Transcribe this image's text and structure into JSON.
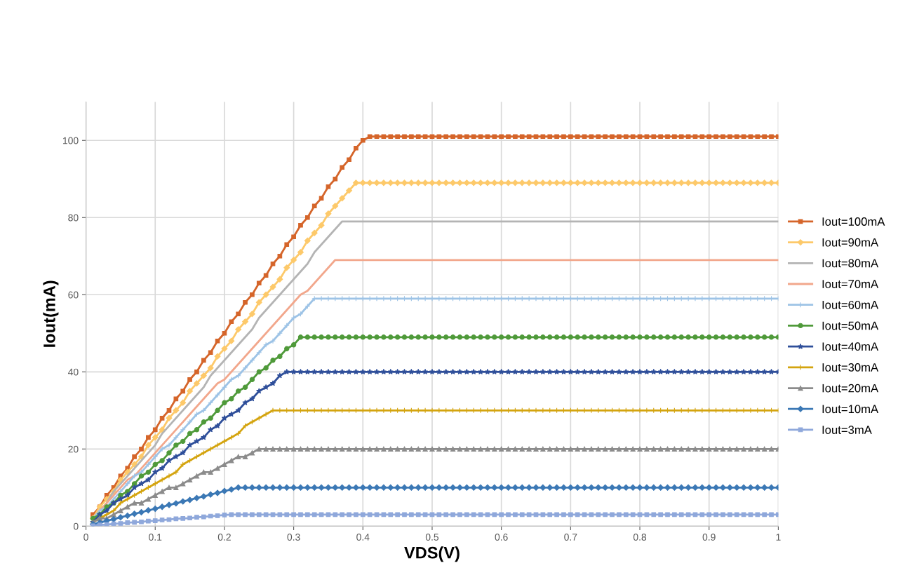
{
  "chart_data": {
    "type": "line",
    "xlabel": "VDS(V)",
    "ylabel": "Iout(mA)",
    "x": [
      0.01,
      0.02,
      0.03,
      0.04,
      0.05,
      0.06,
      0.07,
      0.08,
      0.09,
      0.1,
      0.11,
      0.12,
      0.13,
      0.14,
      0.15,
      0.16,
      0.17,
      0.18,
      0.19,
      0.2,
      0.21,
      0.22,
      0.23,
      0.24,
      0.25,
      0.26,
      0.27,
      0.28,
      0.29,
      0.3,
      0.31,
      0.32,
      0.33,
      0.34,
      0.35,
      0.36,
      0.37,
      0.38,
      0.39,
      0.4,
      0.41,
      0.42,
      0.43,
      0.44,
      0.45,
      0.46,
      0.47,
      0.48,
      0.49,
      0.5,
      0.51,
      0.52,
      0.53,
      0.54,
      0.55,
      0.56,
      0.57,
      0.58,
      0.59,
      0.6,
      0.61,
      0.62,
      0.63,
      0.64,
      0.65,
      0.66,
      0.67,
      0.68,
      0.69,
      0.7,
      0.71,
      0.72,
      0.73,
      0.74,
      0.75,
      0.76,
      0.77,
      0.78,
      0.79,
      0.8,
      0.81,
      0.82,
      0.83,
      0.84,
      0.85,
      0.86,
      0.87,
      0.88,
      0.89,
      0.9,
      0.91,
      0.92,
      0.93,
      0.94,
      0.95,
      0.96,
      0.97,
      0.98,
      0.99,
      1
    ],
    "xlim": [
      0,
      1
    ],
    "xticks": [
      0,
      0.1,
      0.2,
      0.3,
      0.4,
      0.5,
      0.6,
      0.7,
      0.8,
      0.9,
      1
    ],
    "ylim": [
      0,
      110
    ],
    "yticks": [
      0,
      20,
      40,
      60,
      80,
      100
    ],
    "grid": true,
    "legend": "right",
    "line_style": "solid",
    "series": [
      {
        "name": "Iout=100mA",
        "color": "#d5652a",
        "marker": "square",
        "values": [
          3,
          5,
          8,
          10,
          13,
          15,
          18,
          20,
          23,
          25,
          28,
          30,
          33,
          35,
          38,
          40,
          43,
          45,
          48,
          50,
          53,
          55,
          58,
          60,
          63,
          65,
          68,
          70,
          73,
          75,
          78,
          80,
          83,
          85,
          88,
          90,
          93,
          95,
          98,
          100,
          101,
          101,
          101,
          101,
          101,
          101,
          101,
          101,
          101,
          101,
          101,
          101,
          101,
          101,
          101,
          101,
          101,
          101,
          101,
          101,
          101,
          101,
          101,
          101,
          101,
          101,
          101,
          101,
          101,
          101,
          101,
          101,
          101,
          101,
          101,
          101,
          101,
          101,
          101,
          101,
          101,
          101,
          101,
          101,
          101,
          101,
          101,
          101,
          101,
          101,
          101,
          101,
          101,
          101,
          101,
          101,
          101,
          101,
          101,
          101
        ]
      },
      {
        "name": "Iout=90mA",
        "color": "#fdc96a",
        "marker": "diamond",
        "values": [
          2,
          5,
          7,
          9,
          12,
          14,
          16,
          18,
          21,
          23,
          25,
          28,
          30,
          32,
          35,
          37,
          39,
          41,
          44,
          46,
          48,
          51,
          53,
          55,
          58,
          60,
          62,
          64,
          67,
          69,
          71,
          74,
          76,
          78,
          81,
          83,
          85,
          87,
          89,
          89,
          89,
          89,
          89,
          89,
          89,
          89,
          89,
          89,
          89,
          89,
          89,
          89,
          89,
          89,
          89,
          89,
          89,
          89,
          89,
          89,
          89,
          89,
          89,
          89,
          89,
          89,
          89,
          89,
          89,
          89,
          89,
          89,
          89,
          89,
          89,
          89,
          89,
          89,
          89,
          89,
          89,
          89,
          89,
          89,
          89,
          89,
          89,
          89,
          89,
          89,
          89,
          89,
          89,
          89,
          89,
          89,
          89,
          89,
          89,
          89
        ]
      },
      {
        "name": "Iout=80mA",
        "color": "#b4b4b4",
        "marker": "none",
        "values": [
          2,
          4,
          6,
          9,
          11,
          13,
          15,
          17,
          19,
          21,
          24,
          26,
          28,
          30,
          32,
          34,
          36,
          39,
          41,
          43,
          45,
          47,
          49,
          51,
          54,
          56,
          58,
          60,
          62,
          64,
          66,
          68,
          71,
          73,
          75,
          77,
          79,
          79,
          79,
          79,
          79,
          79,
          79,
          79,
          79,
          79,
          79,
          79,
          79,
          79,
          79,
          79,
          79,
          79,
          79,
          79,
          79,
          79,
          79,
          79,
          79,
          79,
          79,
          79,
          79,
          79,
          79,
          79,
          79,
          79,
          79,
          79,
          79,
          79,
          79,
          79,
          79,
          79,
          79,
          79,
          79,
          79,
          79,
          79,
          79,
          79,
          79,
          79,
          79,
          79,
          79,
          79,
          79,
          79,
          79,
          79,
          79,
          79,
          79,
          79
        ]
      },
      {
        "name": "Iout=70mA",
        "color": "#f2a78c",
        "marker": "none",
        "values": [
          2,
          4,
          6,
          8,
          10,
          12,
          13,
          15,
          17,
          19,
          21,
          23,
          25,
          27,
          29,
          31,
          33,
          35,
          37,
          38,
          40,
          42,
          44,
          46,
          48,
          50,
          52,
          54,
          56,
          58,
          60,
          61,
          63,
          65,
          67,
          69,
          69,
          69,
          69,
          69,
          69,
          69,
          69,
          69,
          69,
          69,
          69,
          69,
          69,
          69,
          69,
          69,
          69,
          69,
          69,
          69,
          69,
          69,
          69,
          69,
          69,
          69,
          69,
          69,
          69,
          69,
          69,
          69,
          69,
          69,
          69,
          69,
          69,
          69,
          69,
          69,
          69,
          69,
          69,
          69,
          69,
          69,
          69,
          69,
          69,
          69,
          69,
          69,
          69,
          69,
          69,
          69,
          69,
          69,
          69,
          69,
          69,
          69,
          69,
          69
        ]
      },
      {
        "name": "Iout=60mA",
        "color": "#9dc3e6",
        "marker": "cross",
        "values": [
          2,
          4,
          5,
          7,
          9,
          11,
          13,
          14,
          16,
          18,
          20,
          21,
          23,
          25,
          27,
          29,
          30,
          32,
          34,
          36,
          38,
          39,
          41,
          43,
          45,
          47,
          48,
          50,
          52,
          54,
          55,
          57,
          59,
          59,
          59,
          59,
          59,
          59,
          59,
          59,
          59,
          59,
          59,
          59,
          59,
          59,
          59,
          59,
          59,
          59,
          59,
          59,
          59,
          59,
          59,
          59,
          59,
          59,
          59,
          59,
          59,
          59,
          59,
          59,
          59,
          59,
          59,
          59,
          59,
          59,
          59,
          59,
          59,
          59,
          59,
          59,
          59,
          59,
          59,
          59,
          59,
          59,
          59,
          59,
          59,
          59,
          59,
          59,
          59,
          59,
          59,
          59,
          59,
          59,
          59,
          59,
          59,
          59,
          59,
          59
        ]
      },
      {
        "name": "Iout=50mA",
        "color": "#4f9a3a",
        "marker": "circle",
        "values": [
          2,
          3,
          5,
          6,
          8,
          9,
          11,
          13,
          14,
          16,
          17,
          19,
          21,
          22,
          24,
          25,
          27,
          28,
          30,
          32,
          33,
          35,
          36,
          38,
          40,
          41,
          43,
          44,
          46,
          47,
          49,
          49,
          49,
          49,
          49,
          49,
          49,
          49,
          49,
          49,
          49,
          49,
          49,
          49,
          49,
          49,
          49,
          49,
          49,
          49,
          49,
          49,
          49,
          49,
          49,
          49,
          49,
          49,
          49,
          49,
          49,
          49,
          49,
          49,
          49,
          49,
          49,
          49,
          49,
          49,
          49,
          49,
          49,
          49,
          49,
          49,
          49,
          49,
          49,
          49,
          49,
          49,
          49,
          49,
          49,
          49,
          49,
          49,
          49,
          49,
          49,
          49,
          49,
          49,
          49,
          49,
          49,
          49,
          49,
          49
        ]
      },
      {
        "name": "Iout=40mA",
        "color": "#2f4f9a",
        "marker": "star",
        "values": [
          1,
          3,
          4,
          6,
          7,
          8,
          10,
          11,
          12,
          14,
          15,
          17,
          18,
          19,
          21,
          22,
          23,
          25,
          26,
          28,
          29,
          30,
          32,
          33,
          35,
          36,
          37,
          39,
          40,
          40,
          40,
          40,
          40,
          40,
          40,
          40,
          40,
          40,
          40,
          40,
          40,
          40,
          40,
          40,
          40,
          40,
          40,
          40,
          40,
          40,
          40,
          40,
          40,
          40,
          40,
          40,
          40,
          40,
          40,
          40,
          40,
          40,
          40,
          40,
          40,
          40,
          40,
          40,
          40,
          40,
          40,
          40,
          40,
          40,
          40,
          40,
          40,
          40,
          40,
          40,
          40,
          40,
          40,
          40,
          40,
          40,
          40,
          40,
          40,
          40,
          40,
          40,
          40,
          40,
          40,
          40,
          40,
          40,
          40,
          40
        ]
      },
      {
        "name": "Iout=30mA",
        "color": "#d4a40f",
        "marker": "cross",
        "values": [
          1,
          2,
          3,
          4,
          6,
          7,
          8,
          9,
          10,
          11,
          12,
          13,
          14,
          16,
          17,
          18,
          19,
          20,
          21,
          22,
          23,
          24,
          26,
          27,
          28,
          29,
          30,
          30,
          30,
          30,
          30,
          30,
          30,
          30,
          30,
          30,
          30,
          30,
          30,
          30,
          30,
          30,
          30,
          30,
          30,
          30,
          30,
          30,
          30,
          30,
          30,
          30,
          30,
          30,
          30,
          30,
          30,
          30,
          30,
          30,
          30,
          30,
          30,
          30,
          30,
          30,
          30,
          30,
          30,
          30,
          30,
          30,
          30,
          30,
          30,
          30,
          30,
          30,
          30,
          30,
          30,
          30,
          30,
          30,
          30,
          30,
          30,
          30,
          30,
          30,
          30,
          30,
          30,
          30,
          30,
          30,
          30,
          30,
          30,
          30
        ]
      },
      {
        "name": "Iout=20mA",
        "color": "#8c8c8c",
        "marker": "triangle",
        "values": [
          1,
          2,
          2,
          3,
          4,
          5,
          6,
          6,
          7,
          8,
          9,
          10,
          10,
          11,
          12,
          13,
          14,
          14,
          15,
          16,
          17,
          18,
          18,
          19,
          20,
          20,
          20,
          20,
          20,
          20,
          20,
          20,
          20,
          20,
          20,
          20,
          20,
          20,
          20,
          20,
          20,
          20,
          20,
          20,
          20,
          20,
          20,
          20,
          20,
          20,
          20,
          20,
          20,
          20,
          20,
          20,
          20,
          20,
          20,
          20,
          20,
          20,
          20,
          20,
          20,
          20,
          20,
          20,
          20,
          20,
          20,
          20,
          20,
          20,
          20,
          20,
          20,
          20,
          20,
          20,
          20,
          20,
          20,
          20,
          20,
          20,
          20,
          20,
          20,
          20,
          20,
          20,
          20,
          20,
          20,
          20,
          20,
          20,
          20,
          20
        ]
      },
      {
        "name": "Iout=10mA",
        "color": "#3b78b5",
        "marker": "diamond",
        "values": [
          0.5,
          0.9,
          1.4,
          1.8,
          2.3,
          2.7,
          3.2,
          3.6,
          4.1,
          4.5,
          5,
          5.5,
          5.9,
          6.4,
          6.8,
          7.3,
          7.7,
          8.2,
          8.6,
          9.1,
          9.5,
          10,
          10,
          10,
          10,
          10,
          10,
          10,
          10,
          10,
          10,
          10,
          10,
          10,
          10,
          10,
          10,
          10,
          10,
          10,
          10,
          10,
          10,
          10,
          10,
          10,
          10,
          10,
          10,
          10,
          10,
          10,
          10,
          10,
          10,
          10,
          10,
          10,
          10,
          10,
          10,
          10,
          10,
          10,
          10,
          10,
          10,
          10,
          10,
          10,
          10,
          10,
          10,
          10,
          10,
          10,
          10,
          10,
          10,
          10,
          10,
          10,
          10,
          10,
          10,
          10,
          10,
          10,
          10,
          10,
          10,
          10,
          10,
          10,
          10,
          10,
          10,
          10,
          10,
          10
        ]
      },
      {
        "name": "Iout=3mA",
        "color": "#8fa8db",
        "marker": "square",
        "values": [
          0.1,
          0.3,
          0.4,
          0.6,
          0.7,
          0.9,
          1,
          1.1,
          1.3,
          1.4,
          1.6,
          1.7,
          1.9,
          2,
          2.1,
          2.3,
          2.4,
          2.6,
          2.7,
          2.9,
          3,
          3,
          3,
          3,
          3,
          3,
          3,
          3,
          3,
          3,
          3,
          3,
          3,
          3,
          3,
          3,
          3,
          3,
          3,
          3,
          3,
          3,
          3,
          3,
          3,
          3,
          3,
          3,
          3,
          3,
          3,
          3,
          3,
          3,
          3,
          3,
          3,
          3,
          3,
          3,
          3,
          3,
          3,
          3,
          3,
          3,
          3,
          3,
          3,
          3,
          3,
          3,
          3,
          3,
          3,
          3,
          3,
          3,
          3,
          3,
          3,
          3,
          3,
          3,
          3,
          3,
          3,
          3,
          3,
          3,
          3,
          3,
          3,
          3,
          3,
          3,
          3,
          3,
          3,
          3
        ]
      }
    ]
  }
}
